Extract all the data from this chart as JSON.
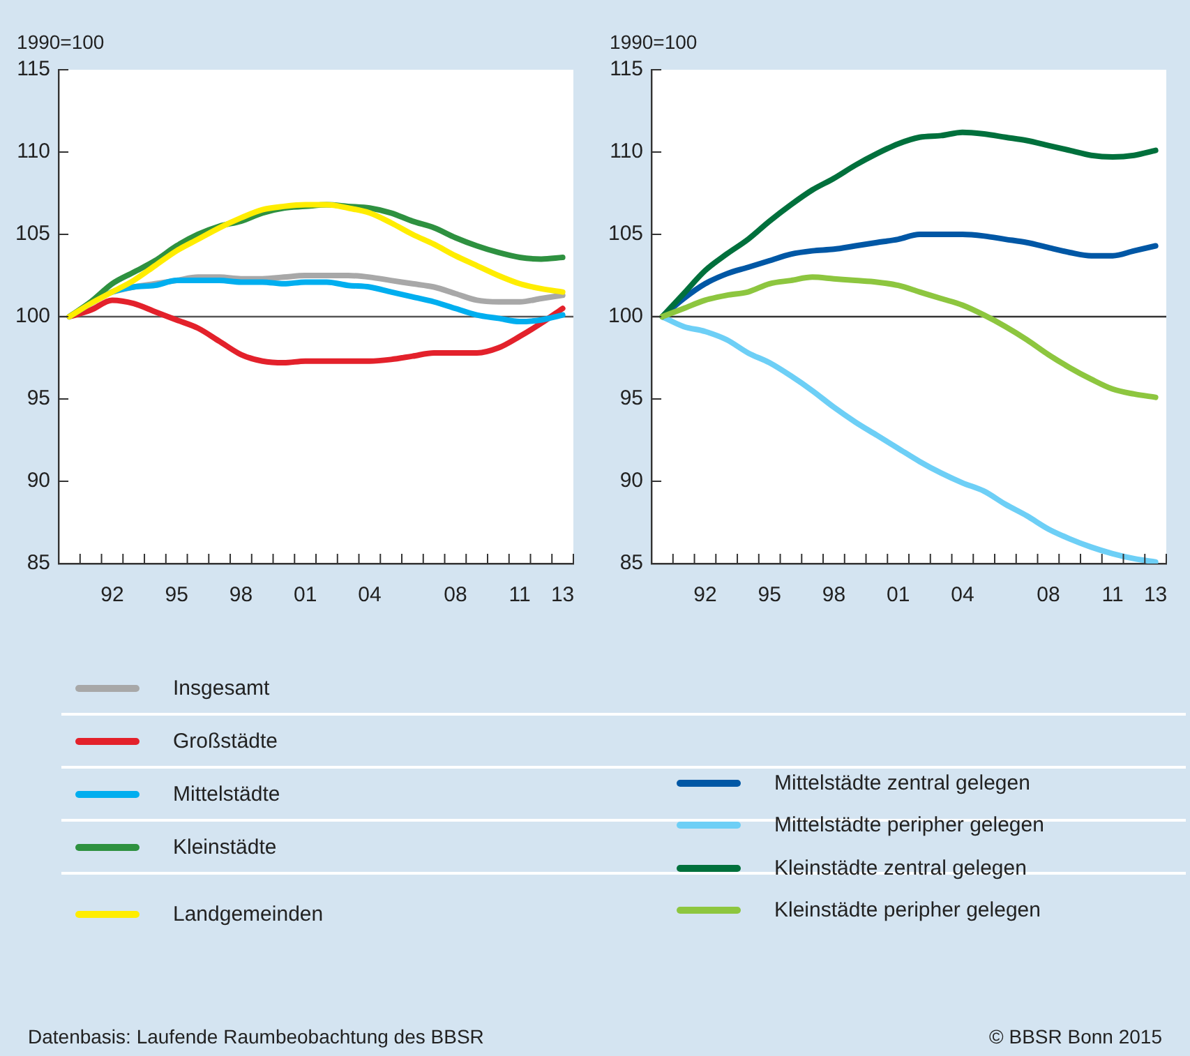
{
  "chart_data": [
    {
      "type": "line",
      "ylabel": "1990=100",
      "x": [
        1990,
        1991,
        1992,
        1993,
        1994,
        1995,
        1996,
        1997,
        1998,
        1999,
        2000,
        2001,
        2002,
        2003,
        2004,
        2005,
        2006,
        2007,
        2008,
        2009,
        2010,
        2011,
        2012,
        2013
      ],
      "xlim": [
        1989.5,
        2013.5
      ],
      "xticks": [
        {
          "value": 1990.5,
          "label": null
        },
        {
          "value": 1991.5,
          "label": null
        },
        {
          "value": 1992,
          "label": "92"
        },
        {
          "value": 1992.5,
          "label": null
        },
        {
          "value": 1993.5,
          "label": null
        },
        {
          "value": 1994.5,
          "label": null
        },
        {
          "value": 1995,
          "label": "95"
        },
        {
          "value": 1995.5,
          "label": null
        },
        {
          "value": 1996.5,
          "label": null
        },
        {
          "value": 1997.5,
          "label": null
        },
        {
          "value": 1998,
          "label": "98"
        },
        {
          "value": 1998.5,
          "label": null
        },
        {
          "value": 1999.5,
          "label": null
        },
        {
          "value": 2000.5,
          "label": null
        },
        {
          "value": 2001,
          "label": "01"
        },
        {
          "value": 2001.5,
          "label": null
        },
        {
          "value": 2002.5,
          "label": null
        },
        {
          "value": 2003.5,
          "label": null
        },
        {
          "value": 2004,
          "label": "04"
        },
        {
          "value": 2004.5,
          "label": null
        },
        {
          "value": 2005.5,
          "label": null
        },
        {
          "value": 2006.5,
          "label": null
        },
        {
          "value": 2007.5,
          "label": null
        },
        {
          "value": 2008,
          "label": "08"
        },
        {
          "value": 2008.5,
          "label": null
        },
        {
          "value": 2009.5,
          "label": null
        },
        {
          "value": 2010.5,
          "label": null
        },
        {
          "value": 2011,
          "label": "11"
        },
        {
          "value": 2011.5,
          "label": null
        },
        {
          "value": 2012.5,
          "label": null
        },
        {
          "value": 2013,
          "label": "13"
        },
        {
          "value": 2013.5,
          "label": null
        }
      ],
      "ylim": [
        85,
        115
      ],
      "yticks": [
        85,
        90,
        95,
        100,
        105,
        110,
        115
      ],
      "grid": false,
      "legend": "bottom",
      "line_style": "solid",
      "marker": "none",
      "ref_lines": [
        {
          "axis": "y",
          "value": 100,
          "color": "#555555"
        }
      ],
      "series": [
        {
          "name": "Insgesamt",
          "color": "#a8a8a8",
          "values": [
            null,
            null,
            101.5,
            101.8,
            102.0,
            102.2,
            102.4,
            102.4,
            102.3,
            102.3,
            102.4,
            102.5,
            102.5,
            102.5,
            102.4,
            102.2,
            102.0,
            101.8,
            101.4,
            101.0,
            100.9,
            100.9,
            101.1,
            101.3
          ]
        },
        {
          "name": "Großstädte",
          "color": "#e3212b",
          "values": [
            100,
            100.4,
            101.0,
            100.8,
            100.3,
            99.8,
            99.3,
            98.5,
            97.7,
            97.3,
            97.2,
            97.3,
            97.3,
            97.3,
            97.3,
            97.4,
            97.6,
            97.8,
            97.8,
            97.8,
            98.1,
            98.8,
            99.6,
            100.5
          ]
        },
        {
          "name": "Mittelstädte",
          "color": "#00aeef",
          "values": [
            100,
            100.8,
            101.5,
            101.8,
            101.9,
            102.2,
            102.2,
            102.2,
            102.1,
            102.1,
            102.0,
            102.1,
            102.1,
            101.9,
            101.8,
            101.5,
            101.2,
            100.9,
            100.5,
            100.1,
            99.9,
            99.7,
            99.8,
            100.1
          ]
        },
        {
          "name": "Kleinstädte",
          "color": "#2e9140",
          "values": [
            100,
            100.9,
            102.0,
            102.7,
            103.4,
            104.3,
            105.0,
            105.5,
            105.8,
            106.3,
            106.6,
            106.7,
            106.8,
            106.7,
            106.6,
            106.3,
            105.8,
            105.4,
            104.8,
            104.3,
            103.9,
            103.6,
            103.5,
            103.6
          ]
        },
        {
          "name": "Landgemeinden",
          "color": "#ffed00",
          "values": [
            100,
            100.8,
            101.5,
            102.2,
            103.1,
            104.0,
            104.7,
            105.4,
            106.0,
            106.5,
            106.7,
            106.8,
            106.8,
            106.6,
            106.3,
            105.7,
            105.0,
            104.4,
            103.7,
            103.1,
            102.5,
            102.0,
            101.7,
            101.5
          ]
        }
      ],
      "annotations": [
        "Datenbasis: Laufende Raumbeobachtung des BBSR",
        "© BBSR Bonn 2015"
      ]
    },
    {
      "type": "line",
      "ylabel": "1990=100",
      "x": [
        1990,
        1991,
        1992,
        1993,
        1994,
        1995,
        1996,
        1997,
        1998,
        1999,
        2000,
        2001,
        2002,
        2003,
        2004,
        2005,
        2006,
        2007,
        2008,
        2009,
        2010,
        2011,
        2012,
        2013
      ],
      "xlim": [
        1989.5,
        2013.5
      ],
      "xticks": [
        {
          "value": 1990.5,
          "label": null
        },
        {
          "value": 1991.5,
          "label": null
        },
        {
          "value": 1992,
          "label": "92"
        },
        {
          "value": 1992.5,
          "label": null
        },
        {
          "value": 1993.5,
          "label": null
        },
        {
          "value": 1994.5,
          "label": null
        },
        {
          "value": 1995,
          "label": "95"
        },
        {
          "value": 1995.5,
          "label": null
        },
        {
          "value": 1996.5,
          "label": null
        },
        {
          "value": 1997.5,
          "label": null
        },
        {
          "value": 1998,
          "label": "98"
        },
        {
          "value": 1998.5,
          "label": null
        },
        {
          "value": 1999.5,
          "label": null
        },
        {
          "value": 2000.5,
          "label": null
        },
        {
          "value": 2001,
          "label": "01"
        },
        {
          "value": 2001.5,
          "label": null
        },
        {
          "value": 2002.5,
          "label": null
        },
        {
          "value": 2003.5,
          "label": null
        },
        {
          "value": 2004,
          "label": "04"
        },
        {
          "value": 2004.5,
          "label": null
        },
        {
          "value": 2005.5,
          "label": null
        },
        {
          "value": 2006.5,
          "label": null
        },
        {
          "value": 2007.5,
          "label": null
        },
        {
          "value": 2008,
          "label": "08"
        },
        {
          "value": 2008.5,
          "label": null
        },
        {
          "value": 2009.5,
          "label": null
        },
        {
          "value": 2010.5,
          "label": null
        },
        {
          "value": 2011,
          "label": "11"
        },
        {
          "value": 2011.5,
          "label": null
        },
        {
          "value": 2012.5,
          "label": null
        },
        {
          "value": 2013,
          "label": "13"
        },
        {
          "value": 2013.5,
          "label": null
        }
      ],
      "ylim": [
        85,
        115
      ],
      "yticks": [
        85,
        90,
        95,
        100,
        105,
        110,
        115
      ],
      "grid": false,
      "legend": "bottom",
      "line_style": "solid",
      "marker": "none",
      "ref_lines": [
        {
          "axis": "y",
          "value": 100,
          "color": "#333333"
        }
      ],
      "series": [
        {
          "name": "Mittelstädte zentral gelegen",
          "color": "#0057a5",
          "values": [
            100,
            101.1,
            102.0,
            102.6,
            103.0,
            103.4,
            103.8,
            104.0,
            104.1,
            104.3,
            104.5,
            104.7,
            105.0,
            105.0,
            105.0,
            104.9,
            104.7,
            104.5,
            104.2,
            103.9,
            103.7,
            103.7,
            104.0,
            104.3
          ]
        },
        {
          "name": "Mittelstädte peripher gelegen",
          "color": "#6dcff6",
          "values": [
            100,
            99.4,
            99.1,
            98.6,
            97.8,
            97.2,
            96.4,
            95.5,
            94.5,
            93.6,
            92.8,
            92.0,
            91.2,
            90.5,
            89.9,
            89.4,
            88.6,
            87.9,
            87.1,
            86.5,
            86.0,
            85.6,
            85.3,
            85.1
          ]
        },
        {
          "name": "Kleinstädte zentral gelegen",
          "color": "#00703c",
          "values": [
            100,
            101.4,
            102.8,
            103.8,
            104.7,
            105.8,
            106.8,
            107.7,
            108.4,
            109.2,
            109.9,
            110.5,
            110.9,
            111.0,
            111.2,
            111.1,
            110.9,
            110.7,
            110.4,
            110.1,
            109.8,
            109.7,
            109.8,
            110.1
          ]
        },
        {
          "name": "Kleinstädte peripher gelegen",
          "color": "#8dc63f",
          "values": [
            100,
            100.5,
            101.0,
            101.3,
            101.5,
            102.0,
            102.2,
            102.4,
            102.3,
            102.2,
            102.1,
            101.9,
            101.5,
            101.1,
            100.7,
            100.1,
            99.4,
            98.6,
            97.7,
            96.9,
            96.2,
            95.6,
            95.3,
            95.1
          ]
        }
      ]
    }
  ]
}
